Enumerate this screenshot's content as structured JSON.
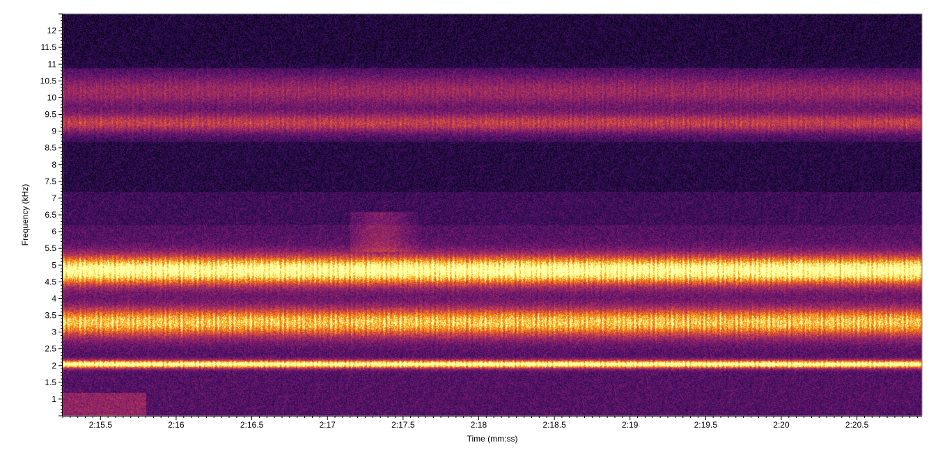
{
  "chart_data": {
    "type": "heatmap",
    "title": "",
    "xlabel": "Time (mm:ss)",
    "ylabel": "Frequency (kHz)",
    "x_ticks": [
      "2:15.5",
      "2:16",
      "2:16.5",
      "2:17",
      "2:17.5",
      "2:18",
      "2:18.5",
      "2:19",
      "2:19.5",
      "2:20",
      "2:20.5"
    ],
    "x_tick_values_s": [
      135.5,
      136,
      136.5,
      137,
      137.5,
      138,
      138.5,
      139,
      139.5,
      140,
      140.5
    ],
    "xlim_s": [
      135.25,
      140.93
    ],
    "y_ticks": [
      "1",
      "1.5",
      "2",
      "2.5",
      "3",
      "3.5",
      "4",
      "4.5",
      "5",
      "5.5",
      "6",
      "6.5",
      "7",
      "7.5",
      "8",
      "8.5",
      "9",
      "9.5",
      "10",
      "10.5",
      "11",
      "11.5",
      "12"
    ],
    "y_tick_values_khz": [
      1,
      1.5,
      2,
      2.5,
      3,
      3.5,
      4,
      4.5,
      5,
      5.5,
      6,
      6.5,
      7,
      7.5,
      8,
      8.5,
      9,
      9.5,
      10,
      10.5,
      11,
      11.5,
      12
    ],
    "ylim_khz": [
      0.5,
      12.5
    ],
    "colormap": "inferno",
    "colors": {
      "low": "#000004",
      "mid_low": "#420a68",
      "mid": "#932667",
      "mid_high": "#dd513a",
      "high": "#fca50a",
      "peak": "#fcffa4"
    },
    "energy_bands_khz": [
      {
        "center": 2.05,
        "width": 0.12,
        "intensity": 0.95
      },
      {
        "center": 3.3,
        "width": 0.45,
        "intensity": 0.72
      },
      {
        "center": 4.85,
        "width": 0.45,
        "intensity": 0.92
      },
      {
        "center": 9.25,
        "width": 0.3,
        "intensity": 0.42
      },
      {
        "center": 10.2,
        "width": 0.5,
        "intensity": 0.3
      }
    ],
    "grid": false,
    "legend": "none"
  }
}
